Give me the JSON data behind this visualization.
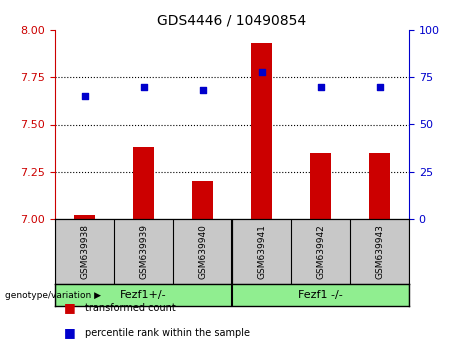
{
  "title": "GDS4446 / 10490854",
  "samples": [
    "GSM639938",
    "GSM639939",
    "GSM639940",
    "GSM639941",
    "GSM639942",
    "GSM639943"
  ],
  "bar_values": [
    7.02,
    7.38,
    7.2,
    7.93,
    7.35,
    7.35
  ],
  "scatter_values": [
    65,
    70,
    68,
    78,
    70,
    70
  ],
  "ylim_left": [
    7.0,
    8.0
  ],
  "ylim_right": [
    0,
    100
  ],
  "yticks_left": [
    7.0,
    7.25,
    7.5,
    7.75,
    8.0
  ],
  "yticks_right": [
    0,
    25,
    50,
    75,
    100
  ],
  "bar_color": "#cc0000",
  "scatter_color": "#0000cc",
  "bar_bottom": 7.0,
  "group1_label": "Fezf1+/-",
  "group2_label": "Fezf1 -/-",
  "group_header": "genotype/variation",
  "legend_bar_label": "transformed count",
  "legend_scatter_label": "percentile rank within the sample",
  "hlines": [
    7.25,
    7.5,
    7.75
  ],
  "tick_color_left": "#cc0000",
  "tick_color_right": "#0000cc",
  "label_area_color": "#c8c8c8",
  "group_area_color": "#90ee90",
  "title_fontsize": 10,
  "sample_fontsize": 6.5,
  "group_fontsize": 8,
  "legend_fontsize": 7
}
